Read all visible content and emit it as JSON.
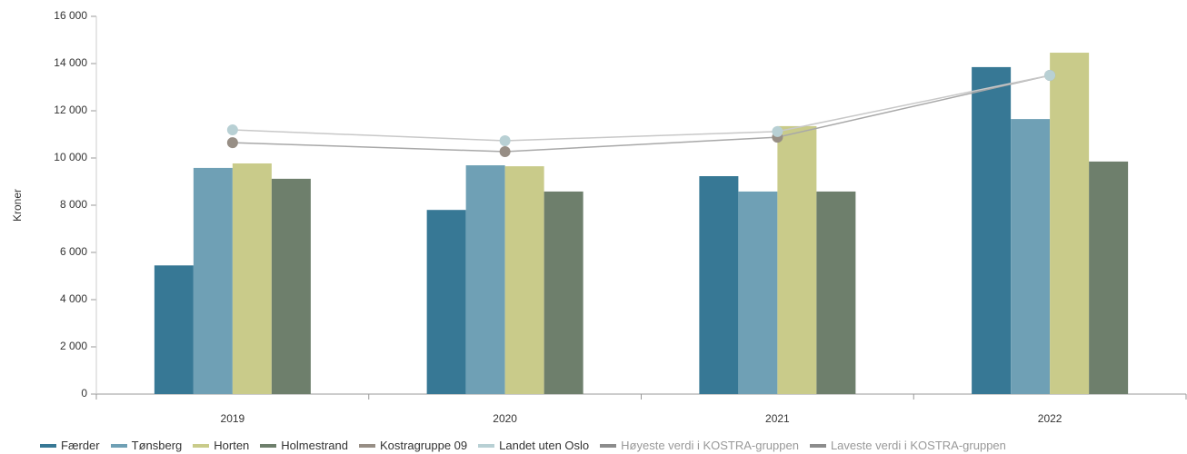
{
  "chart_data": {
    "type": "bar",
    "y_label": "Kroner",
    "categories": [
      "2019",
      "2020",
      "2021",
      "2022"
    ],
    "ylim": [
      0,
      16000
    ],
    "yticks": [
      0,
      {
        "value": 2000,
        "label": "2 000"
      },
      {
        "value": 4000,
        "label": "4 000"
      },
      {
        "value": 6000,
        "label": "6 000"
      },
      {
        "value": 8000,
        "label": "8 000"
      },
      {
        "value": 10000,
        "label": "10 000"
      },
      {
        "value": 12000,
        "label": "12 000"
      },
      {
        "value": 14000,
        "label": "14 000"
      },
      {
        "value": 16000,
        "label": "16 000"
      }
    ],
    "series": [
      {
        "name": "Færder",
        "type": "bar",
        "color": "#377895",
        "values": [
          5450,
          7800,
          9230,
          13850
        ]
      },
      {
        "name": "Tønsberg",
        "type": "bar",
        "color": "#6fa0b5",
        "values": [
          9580,
          9690,
          8580,
          11650
        ]
      },
      {
        "name": "Horten",
        "type": "bar",
        "color": "#c9cb8a",
        "values": [
          9770,
          9650,
          11350,
          14460
        ]
      },
      {
        "name": "Holmestrand",
        "type": "bar",
        "color": "#6e7f6c",
        "values": [
          9120,
          8580,
          8580,
          9850
        ]
      },
      {
        "name": "Kostragruppe 09",
        "type": "line",
        "color": "#978e85",
        "values": [
          10650,
          10270,
          10880,
          13500
        ]
      },
      {
        "name": "Landet uten Oslo",
        "type": "line",
        "color": "#b8d0d4",
        "values": [
          11190,
          10730,
          11120,
          13500
        ]
      },
      {
        "name": "Høyeste verdi i KOSTRA-gruppen",
        "type": "line",
        "color": "#8c8c8c",
        "hidden": true,
        "values": [
          null,
          null,
          null,
          null
        ]
      },
      {
        "name": "Laveste verdi i KOSTRA-gruppen",
        "type": "line",
        "color": "#8c8c8c",
        "hidden": true,
        "values": [
          null,
          null,
          null,
          null
        ]
      }
    ]
  }
}
